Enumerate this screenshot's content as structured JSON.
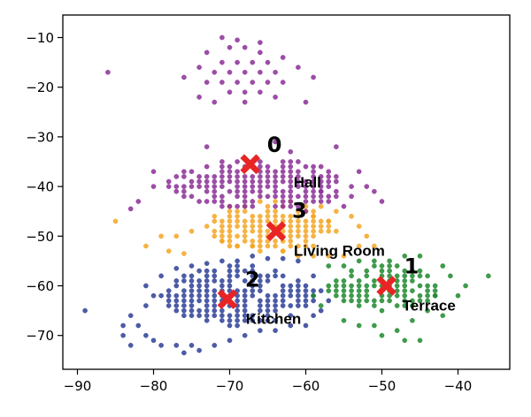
{
  "chart_data": {
    "type": "scatter",
    "title": "",
    "xlabel": "",
    "ylabel": "",
    "xlim": [
      -91,
      -33
    ],
    "ylim": [
      -76.5,
      -5.5
    ],
    "grid": false,
    "x_ticks": [
      -90,
      -80,
      -70,
      -60,
      -50,
      -40
    ],
    "y_ticks": [
      -10,
      -20,
      -30,
      -40,
      -50,
      -60,
      -70
    ],
    "x_tick_labels": [
      "−90",
      "−80",
      "−70",
      "−60",
      "−50",
      "−40"
    ],
    "y_tick_labels": [
      "−10",
      "−20",
      "−30",
      "−40",
      "−50",
      "−60",
      "−70"
    ],
    "colors": {
      "cluster_0": "#8b2f96",
      "cluster_1": "#1e8a2e",
      "cluster_2": "#2e3f98",
      "cluster_3": "#f5a623",
      "centroid": "#e82424"
    },
    "centroid_marker": "x-marker",
    "clusters": [
      {
        "id": "0",
        "label": "Hall",
        "color": "#8b2f96",
        "centroid": [
          -67.3,
          -35.5
        ],
        "points": [
          [
            -71,
            -10
          ],
          [
            -69,
            -10.5
          ],
          [
            -66,
            -11
          ],
          [
            -70,
            -12
          ],
          [
            -68,
            -12
          ],
          [
            -66,
            -13
          ],
          [
            -73,
            -13
          ],
          [
            -63,
            -14
          ],
          [
            -71,
            -15
          ],
          [
            -69,
            -15
          ],
          [
            -67,
            -15
          ],
          [
            -65,
            -15
          ],
          [
            -61,
            -16
          ],
          [
            -74,
            -16
          ],
          [
            -72,
            -17
          ],
          [
            -70,
            -17
          ],
          [
            -68,
            -17
          ],
          [
            -66,
            -17
          ],
          [
            -64,
            -17
          ],
          [
            -86,
            -17
          ],
          [
            -59,
            -18
          ],
          [
            -76,
            -18
          ],
          [
            -73,
            -19
          ],
          [
            -71,
            -19
          ],
          [
            -69,
            -19
          ],
          [
            -67,
            -19
          ],
          [
            -65,
            -19
          ],
          [
            -63,
            -19
          ],
          [
            -70,
            -21
          ],
          [
            -68,
            -21
          ],
          [
            -66,
            -21
          ],
          [
            -74,
            -22
          ],
          [
            -64,
            -22
          ],
          [
            -72,
            -23
          ],
          [
            -60,
            -23
          ],
          [
            -68,
            -23
          ],
          [
            -56,
            -32
          ],
          [
            -64,
            -31
          ],
          [
            -73,
            -32
          ],
          [
            -62,
            -33
          ],
          [
            -80,
            -37
          ],
          [
            -80,
            -40
          ],
          [
            -82,
            -43
          ],
          [
            -83,
            -44.5
          ],
          [
            -57,
            -43
          ],
          [
            -55,
            -44
          ],
          [
            -56,
            -39
          ],
          [
            -58,
            -41
          ],
          [
            -53,
            -37
          ],
          [
            -52,
            -40
          ],
          [
            -54,
            -42
          ],
          [
            -51,
            -41
          ],
          [
            -50,
            -43
          ],
          [
            -60,
            -45
          ]
        ],
        "dense_region": {
          "x": [
            -78,
            -54
          ],
          "y": [
            -44.5,
            -34.5
          ]
        }
      },
      {
        "id": "1",
        "label": "Terrace",
        "color": "#1e8a2e",
        "centroid": [
          -49.4,
          -60
        ],
        "points": [
          [
            -36,
            -58
          ],
          [
            -42,
            -56
          ],
          [
            -41,
            -58
          ],
          [
            -39,
            -60
          ],
          [
            -43,
            -62
          ],
          [
            -40,
            -62
          ],
          [
            -44,
            -65
          ],
          [
            -42,
            -66
          ],
          [
            -46,
            -67
          ],
          [
            -48,
            -69
          ],
          [
            -50,
            -70
          ],
          [
            -47,
            -71
          ],
          [
            -45,
            -71
          ],
          [
            -55,
            -67
          ],
          [
            -53,
            -68
          ],
          [
            -51,
            -68
          ],
          [
            -58,
            -64
          ],
          [
            -59,
            -62
          ],
          [
            -57,
            -60
          ],
          [
            -55,
            -56
          ],
          [
            -57,
            -56
          ],
          [
            -53,
            -55
          ],
          [
            -51,
            -55
          ],
          [
            -49,
            -55
          ],
          [
            -47,
            -54
          ],
          [
            -45,
            -54
          ]
        ],
        "dense_region": {
          "x": [
            -57,
            -42
          ],
          "y": [
            -65,
            -56
          ]
        }
      },
      {
        "id": "2",
        "label": "Kitchen",
        "color": "#2e3f98",
        "centroid": [
          -70.3,
          -62.7
        ],
        "points": [
          [
            -89,
            -65
          ],
          [
            -81,
            -64
          ],
          [
            -83,
            -66
          ],
          [
            -84,
            -68
          ],
          [
            -82,
            -68
          ],
          [
            -84,
            -70
          ],
          [
            -83,
            -72
          ],
          [
            -81,
            -70
          ],
          [
            -80,
            -71
          ],
          [
            -79,
            -72
          ],
          [
            -77,
            -72
          ],
          [
            -75,
            -72
          ],
          [
            -76,
            -73.5
          ],
          [
            -74,
            -73
          ],
          [
            -72,
            -72
          ],
          [
            -70,
            -71
          ],
          [
            -68,
            -70
          ],
          [
            -66,
            -69
          ],
          [
            -64,
            -69
          ],
          [
            -62,
            -68
          ],
          [
            -60,
            -68
          ],
          [
            -59,
            -66
          ],
          [
            -61,
            -55
          ],
          [
            -59,
            -58
          ],
          [
            -58,
            -61
          ],
          [
            -57,
            -63
          ],
          [
            -58,
            -65
          ],
          [
            -67,
            -54
          ],
          [
            -69,
            -55
          ],
          [
            -71,
            -55
          ],
          [
            -73,
            -55.5
          ],
          [
            -75,
            -56
          ],
          [
            -77,
            -56.5
          ],
          [
            -65,
            -54.5
          ],
          [
            -63,
            -54.5
          ],
          [
            -80,
            -62
          ],
          [
            -81,
            -60
          ],
          [
            -79,
            -58
          ]
        ],
        "dense_region": {
          "x": [
            -79,
            -59
          ],
          "y": [
            -68,
            -56
          ]
        }
      },
      {
        "id": "3",
        "label": "Living Room",
        "color": "#f5a623",
        "centroid": [
          -63.9,
          -49
        ],
        "points": [
          [
            -85,
            -47
          ],
          [
            -79,
            -50
          ],
          [
            -81,
            -52
          ],
          [
            -78,
            -53
          ],
          [
            -76,
            -53.5
          ],
          [
            -77,
            -50
          ],
          [
            -75,
            -49
          ],
          [
            -73,
            -48
          ],
          [
            -72,
            -46
          ],
          [
            -70,
            -44
          ],
          [
            -68,
            -44
          ],
          [
            -66,
            -43
          ],
          [
            -64,
            -43
          ],
          [
            -62,
            -43
          ],
          [
            -60,
            -44
          ],
          [
            -58,
            -44
          ],
          [
            -56,
            -45
          ],
          [
            -54,
            -46
          ],
          [
            -53,
            -48
          ],
          [
            -52,
            -50
          ],
          [
            -51,
            -52
          ],
          [
            -53,
            -52
          ],
          [
            -55,
            -54
          ],
          [
            -57,
            -54
          ],
          [
            -59,
            -54
          ],
          [
            -61,
            -54
          ],
          [
            -63,
            -53
          ],
          [
            -65,
            -52
          ],
          [
            -67,
            -52
          ],
          [
            -69,
            -52
          ],
          [
            -71,
            -51
          ],
          [
            -57,
            -47
          ],
          [
            -59,
            -46
          ]
        ],
        "dense_region": {
          "x": [
            -73,
            -56
          ],
          "y": [
            -53,
            -44
          ]
        }
      }
    ]
  }
}
